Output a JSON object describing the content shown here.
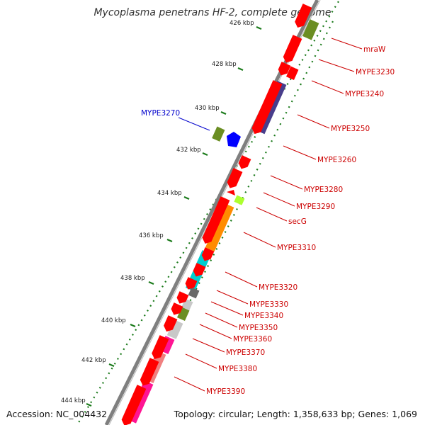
{
  "title": "Mycoplasma penetrans HF-2, complete genome",
  "footer": {
    "accession": "Accession: NC_004432",
    "topology": "Topology: circular; Length: 1,358,633 bp; Genes: 1,069"
  },
  "colors": {
    "backbone": "#7f7f7f",
    "cds": "#ff0000",
    "tick": "#1a7a1a",
    "gene_label": "#cc0000",
    "highlight_label": "#0000cc"
  },
  "ticks": [
    "426 kbp",
    "428 kbp",
    "430 kbp",
    "432 kbp",
    "434 kbp",
    "436 kbp",
    "438 kbp",
    "440 kbp",
    "442 kbp",
    "444 kbp"
  ],
  "genes": [
    {
      "name": "mraW",
      "color": "#6b8e23"
    },
    {
      "name": "MYPE3230",
      "color": "#ff0000"
    },
    {
      "name": "MYPE3240",
      "color": "#ff0000"
    },
    {
      "name": "MYPE3250",
      "color": "#483d8b"
    },
    {
      "name": "MYPE3260",
      "color": "#ff0000"
    },
    {
      "name": "MYPE3270",
      "color": "#0000ff"
    },
    {
      "name": "MYPE3280",
      "color": "#ff0000"
    },
    {
      "name": "MYPE3290",
      "color": "#ff0000"
    },
    {
      "name": "secG",
      "color": "#adff2f"
    },
    {
      "name": "MYPE3310",
      "color": "#ff8c00"
    },
    {
      "name": "MYPE3320",
      "color": "#00ced1"
    },
    {
      "name": "MYPE3330",
      "color": "#696969"
    },
    {
      "name": "MYPE3340",
      "color": "#ff0000"
    },
    {
      "name": "MYPE3350",
      "color": "#c8c8c8"
    },
    {
      "name": "MYPE3360",
      "color": "#6b8e23"
    },
    {
      "name": "MYPE3370",
      "color": "#c8c8c8"
    },
    {
      "name": "MYPE3380",
      "color": "#ff1493"
    },
    {
      "name": "MYPE3390",
      "color": "#f08080"
    }
  ]
}
